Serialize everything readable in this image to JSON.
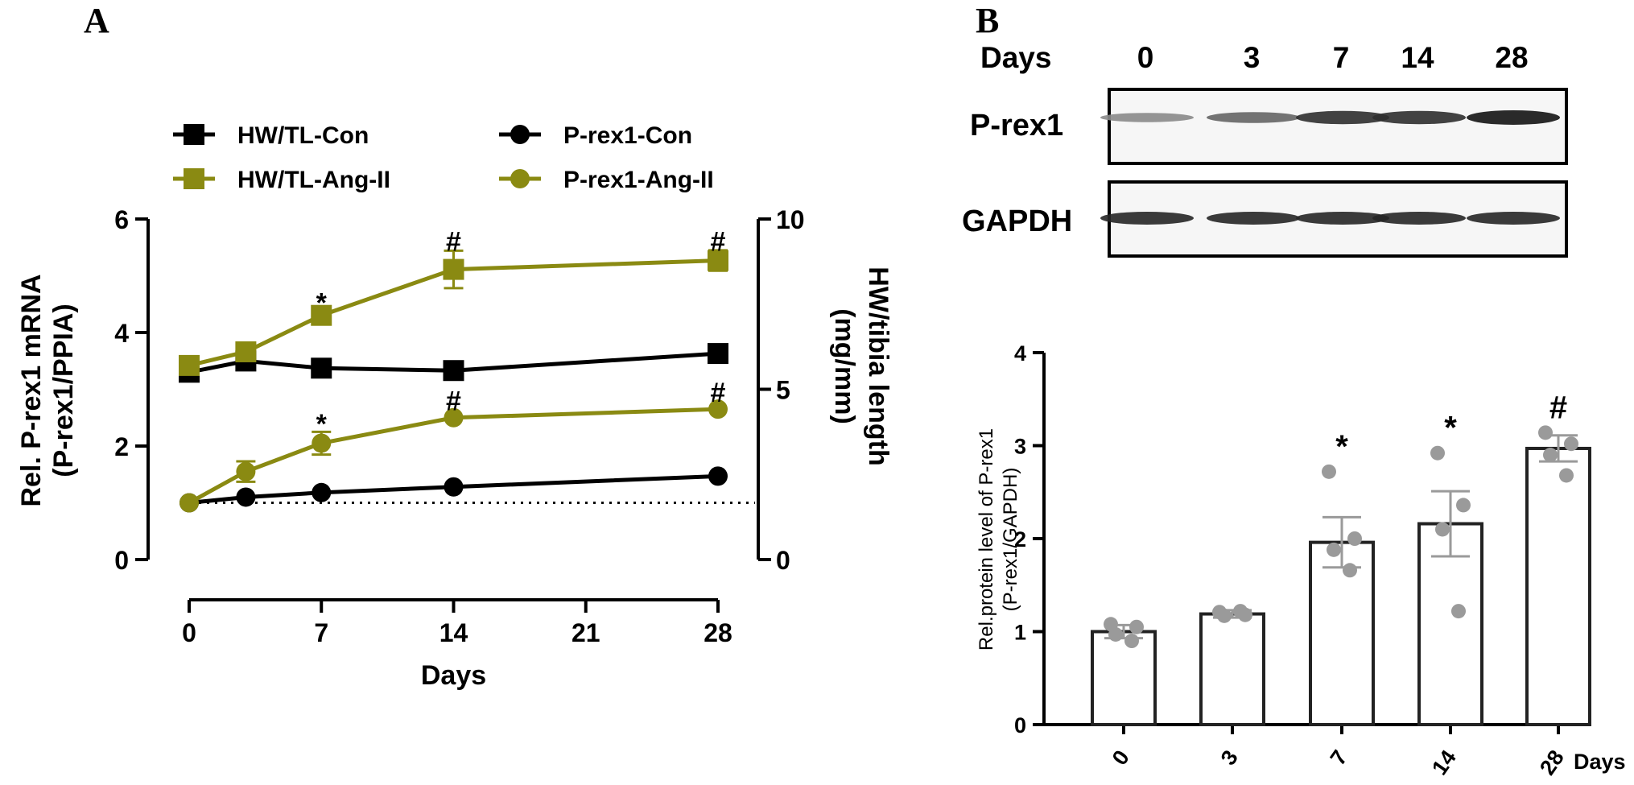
{
  "panels": {
    "a": {
      "letter": "A"
    },
    "b": {
      "letter": "B"
    }
  },
  "colors": {
    "con": "#000000",
    "ang": "#8a8a12",
    "dots": "#9a9a9a",
    "blot_border": "#000000"
  },
  "chart_data": [
    {
      "type": "line",
      "panel": "A",
      "xlabel": "Days",
      "ylabel_left": [
        "Rel. P-rex1 mRNA",
        "(P-rex1/PPIA)"
      ],
      "ylabel_right": [
        "HW/tibia length",
        "(mg/mm)"
      ],
      "xticks": [
        0,
        7,
        14,
        21,
        28
      ],
      "yticks_left": [
        0,
        2,
        4,
        6
      ],
      "yticks_right": [
        0,
        5,
        10
      ],
      "xlim": [
        0,
        28
      ],
      "ylim_left": [
        0,
        6
      ],
      "ylim_right": [
        0,
        10
      ],
      "reference_line_left": 1,
      "legend_position": "top",
      "series": [
        {
          "name": "HW/TL-Con",
          "axis": "right",
          "marker": "square",
          "color": "#000000",
          "x": [
            0,
            3,
            7,
            14,
            28
          ],
          "y": [
            5.5,
            5.83,
            5.62,
            5.55,
            6.05
          ],
          "err": [
            0.15,
            0.12,
            0.1,
            0.1,
            0.12
          ]
        },
        {
          "name": "HW/TL-Ang-II",
          "axis": "right",
          "marker": "square",
          "color": "#8a8a12",
          "x": [
            0,
            3,
            7,
            14,
            28
          ],
          "y": [
            5.7,
            6.1,
            7.17,
            8.52,
            8.78
          ],
          "err": [
            0.12,
            0.15,
            0.15,
            0.55,
            0.3
          ]
        },
        {
          "name": "P-rex1-Con",
          "axis": "left",
          "marker": "circle",
          "color": "#000000",
          "x": [
            0,
            3,
            7,
            14,
            28
          ],
          "y": [
            1.0,
            1.1,
            1.18,
            1.28,
            1.47
          ],
          "err": [
            0.04,
            0.04,
            0.04,
            0.04,
            0.05
          ]
        },
        {
          "name": "P-rex1-Ang-II",
          "axis": "left",
          "marker": "circle",
          "color": "#8a8a12",
          "x": [
            0,
            3,
            7,
            14,
            28
          ],
          "y": [
            1.0,
            1.55,
            2.05,
            2.5,
            2.65
          ],
          "err": [
            0.04,
            0.18,
            0.2,
            0.06,
            0.05
          ]
        }
      ],
      "annotations": [
        {
          "text": "*",
          "x": 7,
          "y_right": 7.55
        },
        {
          "text": "#",
          "x": 14,
          "y_right": 9.35
        },
        {
          "text": "#",
          "x": 28,
          "y_right": 9.35
        },
        {
          "text": "*",
          "x": 7,
          "y_left": 2.4
        },
        {
          "text": "#",
          "x": 14,
          "y_left": 2.8
        },
        {
          "text": "#",
          "x": 28,
          "y_left": 2.95
        }
      ]
    },
    {
      "type": "bar",
      "panel": "B",
      "categories": [
        "0",
        "3",
        "7",
        "14",
        "28"
      ],
      "values": [
        1.0,
        1.19,
        1.96,
        2.16,
        2.97
      ],
      "errors": [
        0.07,
        0.04,
        0.27,
        0.35,
        0.14
      ],
      "points": [
        [
          1.08,
          1.05,
          0.97,
          0.9
        ],
        [
          1.21,
          1.18,
          1.17,
          1.22
        ],
        [
          2.72,
          2.0,
          1.88,
          1.66
        ],
        [
          2.92,
          2.36,
          2.1,
          1.22
        ],
        [
          3.14,
          3.02,
          2.9,
          2.68
        ]
      ],
      "annotations": [
        "",
        "",
        "*",
        "*",
        "#"
      ],
      "xlabel": "Days",
      "ylabel": [
        "Rel.protein level of P-rex1",
        "(P-rex1/GAPDH)"
      ],
      "yticks": [
        0,
        1,
        2,
        3,
        4
      ],
      "ylim": [
        0,
        4
      ]
    }
  ],
  "blot": {
    "header_label": "Days",
    "lanes": [
      "0",
      "3",
      "7",
      "14",
      "28"
    ],
    "rows": [
      {
        "label": "P-rex1",
        "intensity": [
          0.35,
          0.55,
          0.85,
          0.85,
          1.0
        ]
      },
      {
        "label": "GAPDH",
        "intensity": [
          0.9,
          0.9,
          0.9,
          0.9,
          0.9
        ]
      }
    ]
  }
}
